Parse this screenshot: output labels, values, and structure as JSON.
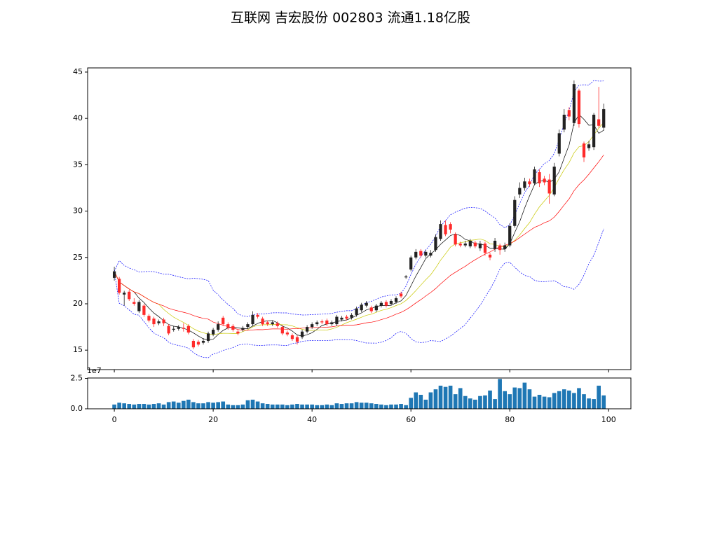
{
  "chart_data": {
    "type": "candlestick",
    "title": "互联网 吉宏股份 002803 流通1.18亿股",
    "xlim": [
      -5.4,
      104.5
    ],
    "xticks": [
      0,
      20,
      40,
      60,
      80,
      100
    ],
    "ylim": [
      12.9,
      45.45
    ],
    "yticks": [
      15,
      20,
      25,
      30,
      35,
      40,
      45
    ],
    "open": [
      22.8,
      22.7,
      21.0,
      21.3,
      20.2,
      19.2,
      19.8,
      18.7,
      18.4,
      17.9,
      18.3,
      17.6,
      17.2,
      17.3,
      17.4,
      17.6,
      16.0,
      15.9,
      15.8,
      16.0,
      16.7,
      17.2,
      18.5,
      17.8,
      17.6,
      17.0,
      17.2,
      17.5,
      17.8,
      18.8,
      18.4,
      18.0,
      17.8,
      17.9,
      17.5,
      16.9,
      16.6,
      16.4,
      16.4,
      17.0,
      17.5,
      17.8,
      18.1,
      18.2,
      17.8,
      17.8,
      18.3,
      18.6,
      18.5,
      18.8,
      19.3,
      19.8,
      19.6,
      19.3,
      19.8,
      20.2,
      20.0,
      20.2,
      21.1,
      22.85,
      23.7,
      25.0,
      25.7,
      25.2,
      25.2,
      25.8,
      27.0,
      28.5,
      28.6,
      27.5,
      26.5,
      26.3,
      26.2,
      26.6,
      26.0,
      26.5,
      25.3,
      25.9,
      26.3,
      25.9,
      26.3,
      28.4,
      31.8,
      32.5,
      33.2,
      33.0,
      34.2,
      33.5,
      33.4,
      31.8,
      36.2,
      38.8,
      40.9,
      39.5,
      43.0,
      37.3,
      36.8,
      36.9,
      39.9,
      39.0
    ],
    "high": [
      24.0,
      22.9,
      21.4,
      21.5,
      20.6,
      20.4,
      20.0,
      18.9,
      18.6,
      18.3,
      18.5,
      17.8,
      17.6,
      17.7,
      17.9,
      17.8,
      16.2,
      16.1,
      16.3,
      17.0,
      17.4,
      18.1,
      18.7,
      18.0,
      17.8,
      17.2,
      17.6,
      18.0,
      19.2,
      19.0,
      18.6,
      18.2,
      18.2,
      18.1,
      17.7,
      17.1,
      16.8,
      16.6,
      17.2,
      17.7,
      18.0,
      18.2,
      18.3,
      18.4,
      18.2,
      18.8,
      18.7,
      18.8,
      19.0,
      19.7,
      20.1,
      20.3,
      19.8,
      20.0,
      20.3,
      20.4,
      20.5,
      20.8,
      21.3,
      23.1,
      25.2,
      25.9,
      25.9,
      25.8,
      25.8,
      27.5,
      29.0,
      29.0,
      28.8,
      27.7,
      26.7,
      26.8,
      27.0,
      26.8,
      26.8,
      26.7,
      25.5,
      27.1,
      26.5,
      26.6,
      28.7,
      31.6,
      33.1,
      33.6,
      33.5,
      34.8,
      34.5,
      33.8,
      34.0,
      35.2,
      38.8,
      41.0,
      41.2,
      44.1,
      43.2,
      37.5,
      37.6,
      40.6,
      43.4,
      41.6
    ],
    "low": [
      22.5,
      21.0,
      19.8,
      20.3,
      19.8,
      19.0,
      18.6,
      18.0,
      17.5,
      17.7,
      17.6,
      16.6,
      17.0,
      17.1,
      17.0,
      16.7,
      15.1,
      15.4,
      15.6,
      15.8,
      16.5,
      17.0,
      17.6,
      17.2,
      17.0,
      16.6,
      17.0,
      17.3,
      17.6,
      18.4,
      17.6,
      17.6,
      17.6,
      17.4,
      16.6,
      16.5,
      16.0,
      15.6,
      16.2,
      16.8,
      17.3,
      17.6,
      17.8,
      17.6,
      17.6,
      17.6,
      18.1,
      18.2,
      18.3,
      18.6,
      19.1,
      19.6,
      19.0,
      19.1,
      19.6,
      19.6,
      19.8,
      20.0,
      20.6,
      22.7,
      23.5,
      24.8,
      25.0,
      25.0,
      25.0,
      25.6,
      26.8,
      27.3,
      27.6,
      26.2,
      26.1,
      26.1,
      26.0,
      26.0,
      25.7,
      25.2,
      24.7,
      25.6,
      25.3,
      25.6,
      26.1,
      28.2,
      31.4,
      32.2,
      32.6,
      32.8,
      32.6,
      32.8,
      30.8,
      31.6,
      35.9,
      38.5,
      39.8,
      39.2,
      39.0,
      35.3,
      36.5,
      36.6,
      39.0,
      38.7
    ],
    "close": [
      23.5,
      21.2,
      21.2,
      20.5,
      20.0,
      20.2,
      18.8,
      18.2,
      17.8,
      18.1,
      17.9,
      16.8,
      17.3,
      17.5,
      17.3,
      16.9,
      15.3,
      15.6,
      16.0,
      16.8,
      17.2,
      17.8,
      17.8,
      17.4,
      17.2,
      16.8,
      17.4,
      17.8,
      18.8,
      18.6,
      17.8,
      17.8,
      18.0,
      17.6,
      16.8,
      16.7,
      16.2,
      15.9,
      17.0,
      17.5,
      17.8,
      18.0,
      18.0,
      17.8,
      18.0,
      18.6,
      18.5,
      18.4,
      18.8,
      19.5,
      19.9,
      20.1,
      19.2,
      19.8,
      20.1,
      19.8,
      20.3,
      20.6,
      20.8,
      22.95,
      25.0,
      25.6,
      25.2,
      25.6,
      25.5,
      27.2,
      28.6,
      27.5,
      28.0,
      26.4,
      26.3,
      26.5,
      26.8,
      26.2,
      26.5,
      25.5,
      25.0,
      26.8,
      25.8,
      26.3,
      28.4,
      31.2,
      32.5,
      33.2,
      32.9,
      34.5,
      33.0,
      33.1,
      31.9,
      34.8,
      38.4,
      40.4,
      40.2,
      43.7,
      39.4,
      35.8,
      37.2,
      40.4,
      39.2,
      41.0
    ],
    "up_color": "#222222",
    "down_color": "#ff2a2a",
    "ma_windows": [
      5,
      10,
      20
    ],
    "ma_colors": [
      "#000000",
      "#c8c800",
      "#ff0000"
    ],
    "boll_window": 20,
    "boll_k": 2,
    "boll_color": "#0000ff",
    "volume": [
      3500000,
      5000000,
      4500000,
      4000000,
      3500000,
      4000000,
      4000000,
      3500000,
      4000000,
      4500000,
      3500000,
      5500000,
      6000000,
      5000000,
      6500000,
      7500000,
      5500000,
      4500000,
      4500000,
      5500000,
      5000000,
      5500000,
      6000000,
      3500000,
      3000000,
      3000000,
      3500000,
      7000000,
      7500000,
      6000000,
      4500000,
      4000000,
      3500000,
      3500000,
      3500000,
      3000000,
      3500000,
      4000000,
      3500000,
      3500000,
      3500000,
      3000000,
      3000000,
      3500000,
      3000000,
      4500000,
      4000000,
      4500000,
      4500000,
      5500000,
      5000000,
      5000000,
      4500000,
      4000000,
      3500000,
      3000000,
      3500000,
      3500000,
      4000000,
      3000000,
      9000000,
      13500000,
      11500000,
      7500000,
      13500000,
      16000000,
      19000000,
      18000000,
      19000000,
      12000000,
      17000000,
      10500000,
      8500000,
      7500000,
      10500000,
      11000000,
      15000000,
      8000000,
      24500000,
      14500000,
      12000000,
      17500000,
      17000000,
      21500000,
      16000000,
      10000000,
      11500000,
      10000000,
      9500000,
      13000000,
      14500000,
      16000000,
      15000000,
      13000000,
      17000000,
      12000000,
      8500000,
      8000000,
      19000000,
      11000000
    ],
    "volume_color": "#1f77b4",
    "volume_ylim": [
      0,
      25300000
    ],
    "volume_yticks": [
      {
        "value": 0,
        "label": "0.0"
      },
      {
        "value": 25000000,
        "label": "2.5"
      }
    ],
    "volume_scale_label": "1e7"
  }
}
